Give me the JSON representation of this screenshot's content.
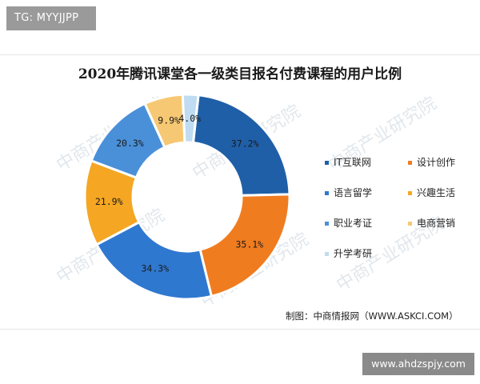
{
  "tag_badge": "TG: MYYJJPP",
  "site_badge": "www.ahdzspjy.com",
  "watermark": "中商产业研究院",
  "source": "制图：中商情报网（WWW.ASKCI.COM）",
  "chart_data": {
    "type": "pie",
    "donut": true,
    "title": "2020年腾讯课堂各一级类目报名付费课程的用户比例",
    "legend_position": "right",
    "slices": [
      {
        "label": "IT互联网",
        "value": 37.2,
        "value_label": "37.2%",
        "color": "#1f5fa8"
      },
      {
        "label": "设计创作",
        "value": 35.1,
        "value_label": "35.1%",
        "color": "#f07c20"
      },
      {
        "label": "语言留学",
        "value": 34.3,
        "value_label": "34.3%",
        "color": "#2f78d0"
      },
      {
        "label": "兴趣生活",
        "value": 21.9,
        "value_label": "21.9%",
        "color": "#f5a623"
      },
      {
        "label": "职业考证",
        "value": 20.3,
        "value_label": "20.3%",
        "color": "#4a90d9"
      },
      {
        "label": "电商营销",
        "value": 9.9,
        "value_label": "9.9%",
        "color": "#f7c873"
      },
      {
        "label": "升学考研",
        "value": 4.0,
        "value_label": "4.0%",
        "color": "#bfdcf2"
      }
    ]
  }
}
